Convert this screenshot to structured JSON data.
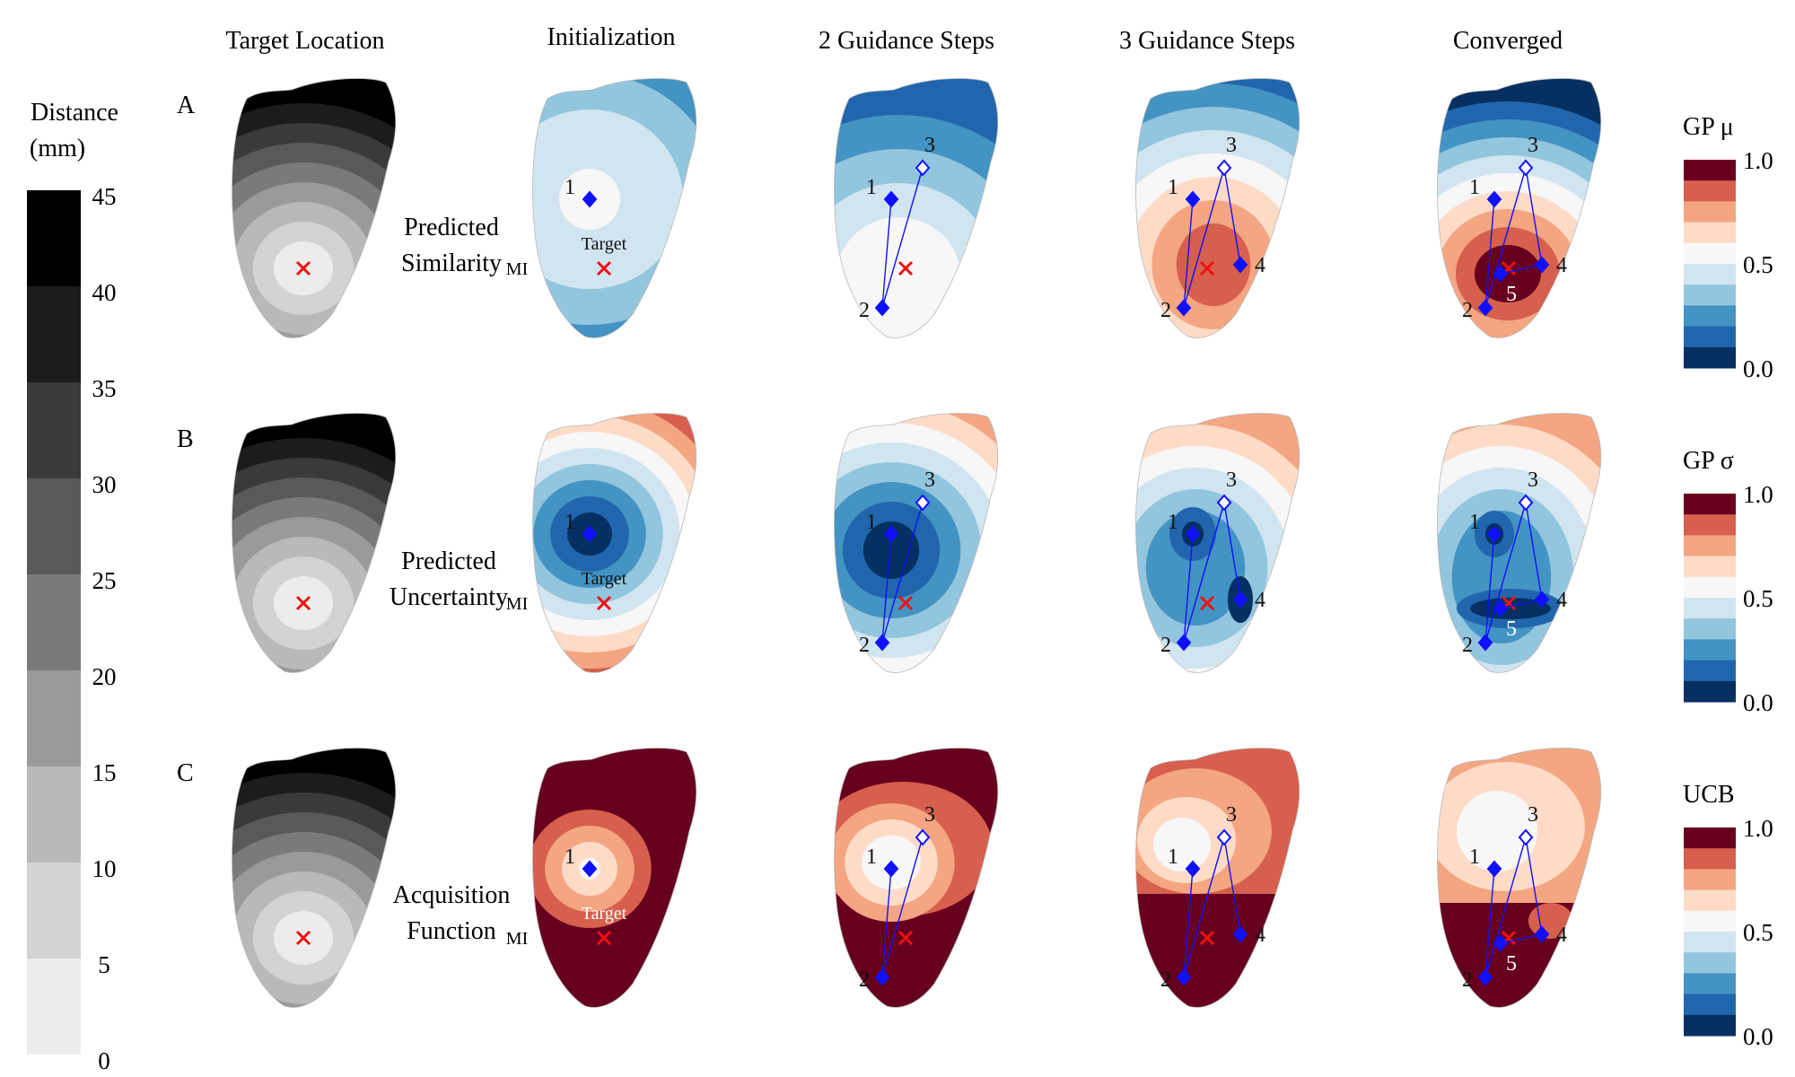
{
  "columns": [
    "Target Location",
    "Initialization",
    "2 Guidance Steps",
    "3 Guidance Steps",
    "Converged"
  ],
  "rows": [
    {
      "letter": "A",
      "label_line1": "Predicted",
      "label_line2": "Similarity"
    },
    {
      "letter": "B",
      "label_line1": "Predicted",
      "label_line2": "Uncertainty"
    },
    {
      "letter": "C",
      "label_line1": "Acquisition",
      "label_line2": "Function"
    }
  ],
  "annotations": {
    "mi": "MI",
    "target": "Target"
  },
  "point_labels": [
    "1",
    "2",
    "3",
    "4",
    "5"
  ],
  "distance_bar": {
    "title_line1": "Distance",
    "title_line2": "(mm)",
    "ticks": [
      "45",
      "40",
      "35",
      "30",
      "25",
      "20",
      "15",
      "10",
      "5",
      "0"
    ],
    "colors": [
      "#000000",
      "#1c1c1c",
      "#3a3a3a",
      "#595959",
      "#7a7a7a",
      "#9a9a9a",
      "#b9b9b9",
      "#d3d3d3",
      "#ececec"
    ]
  },
  "colorbars": [
    {
      "title": "GP μ",
      "top": "1.0",
      "mid": "0.5",
      "bottom": "0.0"
    },
    {
      "title": "GP σ",
      "top": "1.0",
      "mid": "0.5",
      "bottom": "0.0"
    },
    {
      "title": "UCB",
      "top": "1.0",
      "mid": "0.5",
      "bottom": "0.0"
    }
  ],
  "rdbu_colors": [
    "#67001f",
    "#d6604d",
    "#f4a582",
    "#fddbc7",
    "#f7f7f7",
    "#d1e5f0",
    "#92c5de",
    "#4393c3",
    "#2166ac",
    "#053061"
  ],
  "colors": {
    "marker": "#1010ff",
    "target_x": "#ee1111",
    "mi_region": "#7b0a7b",
    "heart_edge": "#b8b8b8"
  }
}
